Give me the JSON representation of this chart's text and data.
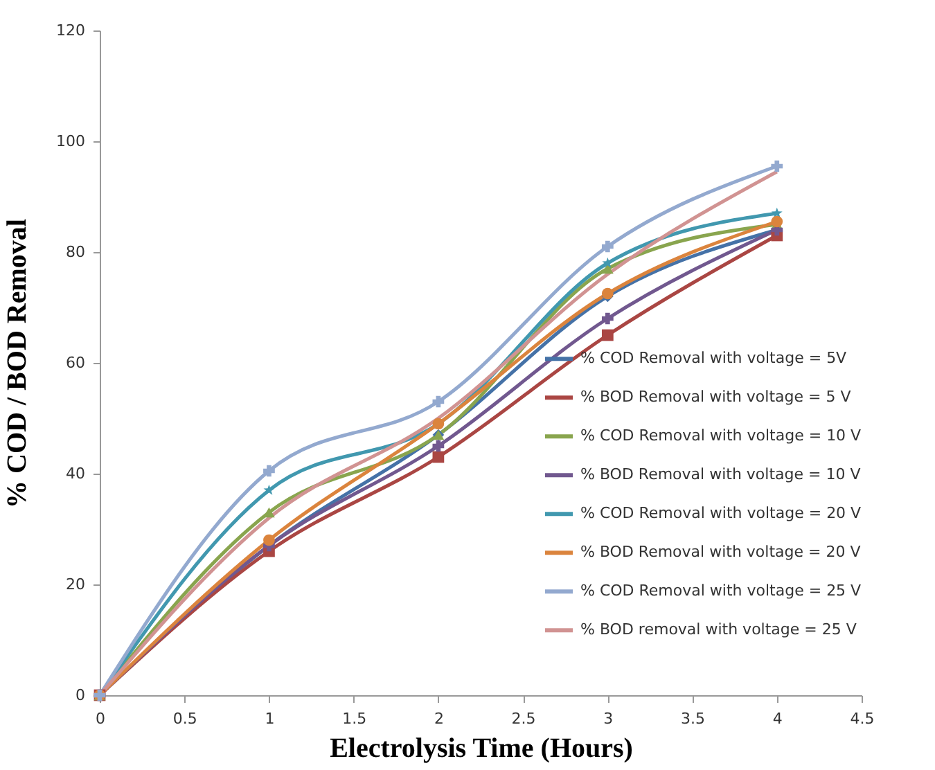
{
  "chart_data": {
    "type": "line",
    "xlabel": "Electrolysis Time (Hours)",
    "ylabel": "% COD / BOD Removal",
    "x": [
      0,
      1,
      2,
      3,
      4
    ],
    "xlim": [
      0,
      4.5
    ],
    "xticks": [
      0,
      0.5,
      1,
      1.5,
      2,
      2.5,
      3,
      3.5,
      4,
      4.5
    ],
    "ylim": [
      0,
      120
    ],
    "yticks": [
      0,
      20,
      40,
      60,
      80,
      100,
      120
    ],
    "grid": false,
    "legend": "right",
    "line_style": "solid",
    "series": [
      {
        "name": "% COD Removal with voltage = 5V",
        "color": "#4572a7",
        "marker": "diamond",
        "values": [
          0,
          27,
          47,
          72,
          84
        ]
      },
      {
        "name": "% BOD Removal with voltage = 5 V",
        "color": "#aa4643",
        "marker": "square",
        "values": [
          0,
          26,
          43,
          65,
          83
        ]
      },
      {
        "name": "% COD Removal with voltage = 10 V",
        "color": "#89a54e",
        "marker": "triangle",
        "values": [
          0,
          33,
          47,
          77,
          85
        ]
      },
      {
        "name": "% BOD Removal with voltage = 10 V",
        "color": "#71588f",
        "marker": "cross",
        "values": [
          0,
          27,
          45,
          68,
          84
        ]
      },
      {
        "name": "% COD Removal with voltage = 20 V",
        "color": "#4198af",
        "marker": "star",
        "values": [
          0,
          37,
          49,
          78,
          87
        ]
      },
      {
        "name": "% BOD Removal with voltage = 20 V",
        "color": "#db843d",
        "marker": "circle",
        "values": [
          0,
          28,
          49,
          72.5,
          85.5
        ]
      },
      {
        "name": "% COD Removal with voltage = 25 V",
        "color": "#93a9cf",
        "marker": "cross",
        "values": [
          0,
          40.5,
          53,
          81,
          95.5
        ]
      },
      {
        "name": "% BOD removal with voltage = 25 V",
        "color": "#d19392",
        "marker": "none",
        "values": [
          0,
          32,
          50,
          76,
          94.5
        ]
      }
    ]
  }
}
